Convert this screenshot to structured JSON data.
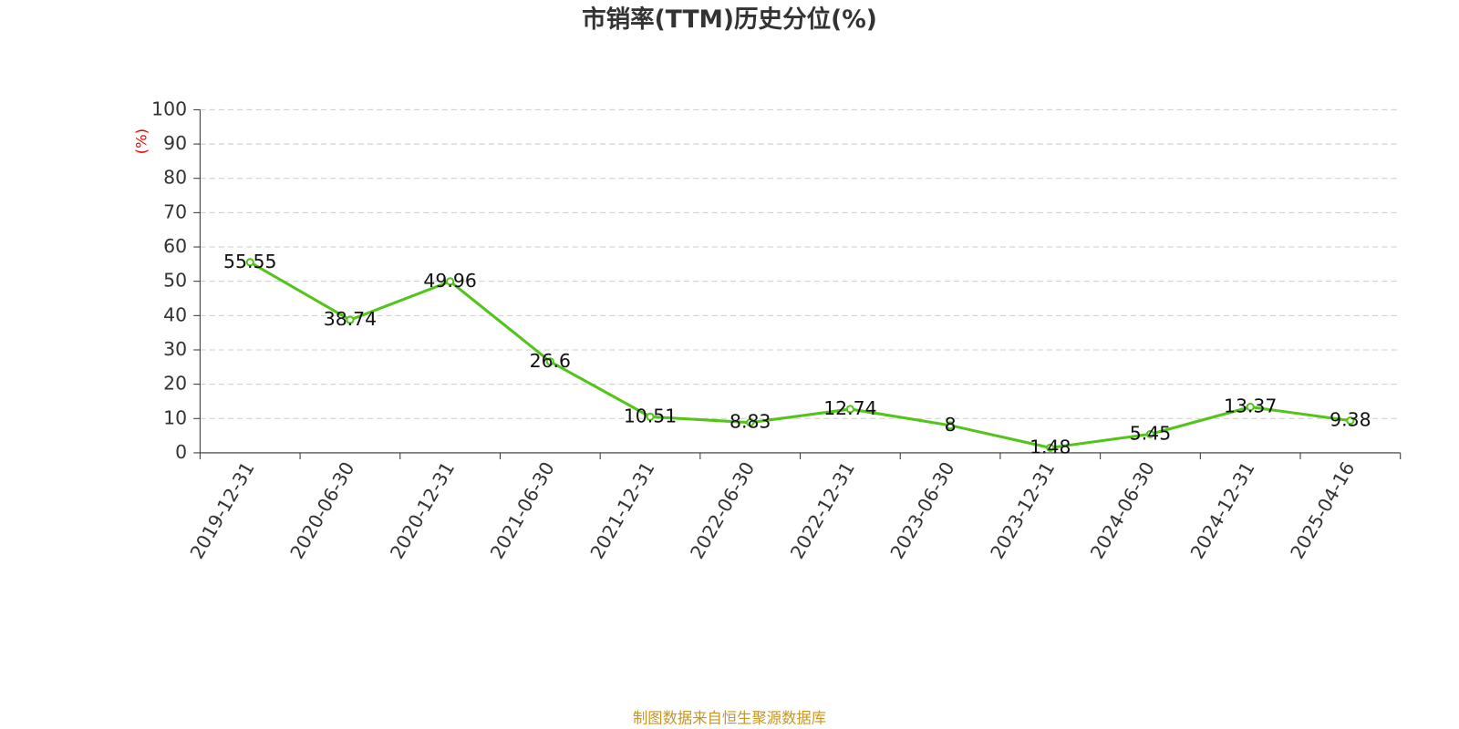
{
  "chart_data": {
    "type": "line",
    "title": "市销率(TTM)历史分位(%)",
    "y_axis_label": "(%)",
    "categories": [
      "2019-12-31",
      "2020-06-30",
      "2020-12-31",
      "2021-06-30",
      "2021-12-31",
      "2022-06-30",
      "2022-12-31",
      "2023-06-30",
      "2023-12-31",
      "2024-06-30",
      "2024-12-31",
      "2025-04-16"
    ],
    "values": [
      55.55,
      38.74,
      49.96,
      26.6,
      10.51,
      8.83,
      12.74,
      8,
      1.48,
      5.45,
      13.37,
      9.38
    ],
    "color": "#52c41a",
    "ylim": [
      0,
      100
    ],
    "yticks": [
      0,
      10,
      20,
      30,
      40,
      50,
      60,
      70,
      80,
      90,
      100
    ],
    "grid": true,
    "source": "制图数据来自恒生聚源数据库"
  }
}
